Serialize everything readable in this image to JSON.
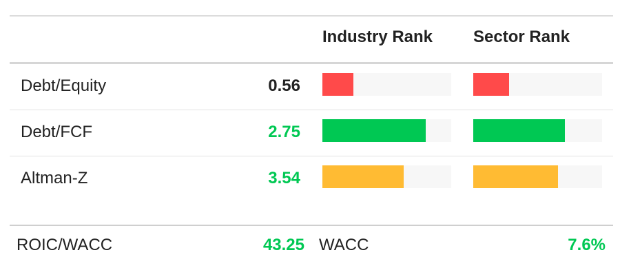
{
  "columns": {
    "industry_rank": "Industry Rank",
    "sector_rank": "Sector Rank"
  },
  "colors": {
    "bad": "#ff4a4a",
    "good": "#00c853",
    "neutral": "#ffbb33",
    "value_default": "#222222",
    "value_good": "#00c853"
  },
  "metrics": [
    {
      "label": "Debt/Equity",
      "value": "0.56",
      "value_status": "default",
      "industry_rank_fraction": 0.24,
      "sector_rank_fraction": 0.28,
      "rank_color": "#ff4a4a"
    },
    {
      "label": "Debt/FCF",
      "value": "2.75",
      "value_status": "good",
      "industry_rank_fraction": 0.8,
      "sector_rank_fraction": 0.71,
      "rank_color": "#00c853"
    },
    {
      "label": "Altman-Z",
      "value": "3.54",
      "value_status": "good",
      "industry_rank_fraction": 0.63,
      "sector_rank_fraction": 0.66,
      "rank_color": "#ffbb33"
    }
  ],
  "footer": {
    "roic_wacc_label": "ROIC/WACC",
    "roic_wacc_value": "43.25",
    "wacc_label": "WACC",
    "wacc_value": "7.6%"
  }
}
